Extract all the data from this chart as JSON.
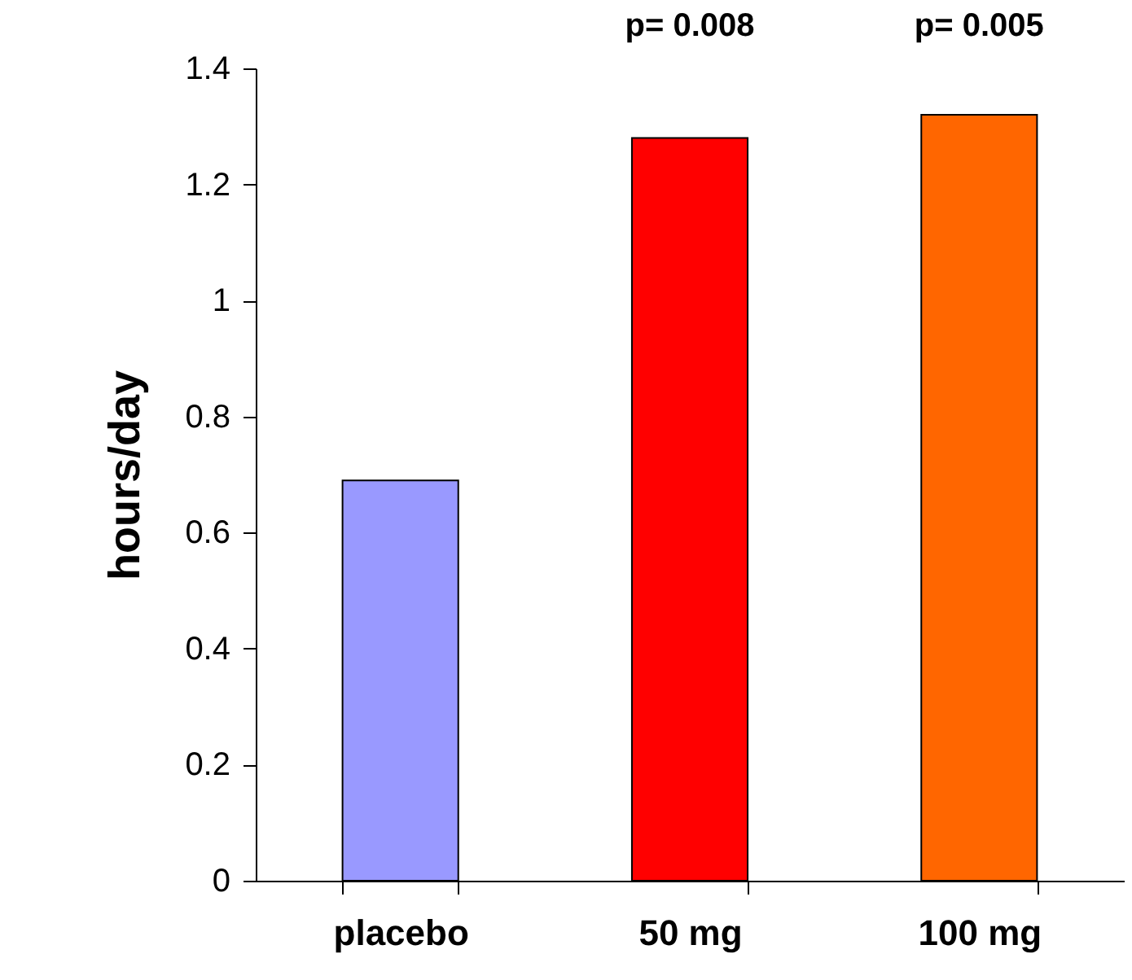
{
  "chart_data": {
    "type": "bar",
    "ylabel": "hours/day",
    "categories": [
      "placebo",
      "50 mg",
      "100 mg"
    ],
    "values": [
      0.69,
      1.28,
      1.32
    ],
    "colors": [
      "#9999ff",
      "#ff0000",
      "#ff6600"
    ],
    "ylim": [
      0,
      1.4
    ],
    "yticks": [
      0,
      0.2,
      0.4,
      0.6,
      0.8,
      1,
      1.2,
      1.4
    ],
    "grid": false,
    "annotations": [
      "p= 0.008",
      "p= 0.005"
    ]
  }
}
